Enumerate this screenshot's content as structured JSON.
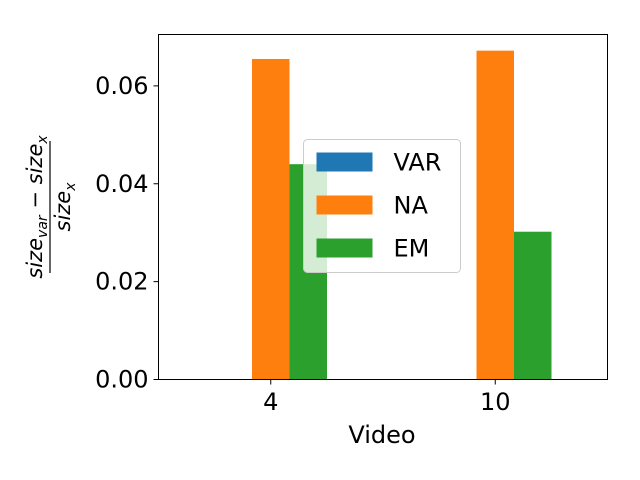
{
  "chart_data": {
    "type": "bar",
    "title": "",
    "xlabel": "Video",
    "ylabel": {
      "numerator": "size_var − size_x",
      "denominator": "size_x"
    },
    "categories": [
      "4",
      "10"
    ],
    "ylim": [
      0,
      0.0705
    ],
    "yticks": [
      0.0,
      0.02,
      0.04,
      0.06
    ],
    "ytick_labels": [
      "0.00",
      "0.02",
      "0.04",
      "0.06"
    ],
    "grid": false,
    "legend_position": "center",
    "series": [
      {
        "name": "VAR",
        "values": [
          0.0,
          0.0
        ],
        "color": "#1f77b4"
      },
      {
        "name": "NA",
        "values": [
          0.0655,
          0.0672
        ],
        "color": "#ff7f0e"
      },
      {
        "name": "EM",
        "values": [
          0.044,
          0.0302
        ],
        "color": "#2ca02c"
      }
    ]
  }
}
